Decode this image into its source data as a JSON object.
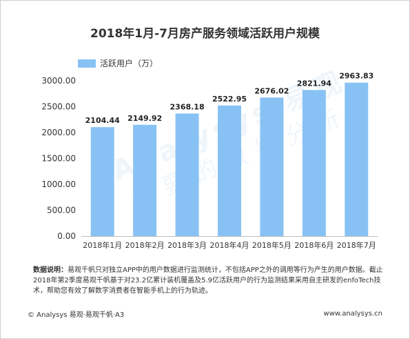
{
  "header": {
    "title": "2018年1月-7月房产服务领域活跃用户规模"
  },
  "legend": {
    "label": "活跃用户（万）",
    "color": "#88c2f4"
  },
  "chart_data": {
    "type": "bar",
    "categories": [
      "2018年1月",
      "2018年2月",
      "2018年3月",
      "2018年4月",
      "2018年5月",
      "2018年6月",
      "2018年7月"
    ],
    "series": [
      {
        "name": "活跃用户（万）",
        "values": [
          2104.44,
          2149.92,
          2368.18,
          2522.95,
          2676.02,
          2821.94,
          2963.83
        ]
      }
    ],
    "value_labels": [
      "2104.44",
      "2149.92",
      "2368.18",
      "2522.95",
      "2676.02",
      "2821.94",
      "2963.83"
    ],
    "ylim": [
      0,
      3000
    ],
    "yticks": [
      "0.00",
      "500.00",
      "1000.00",
      "1500.00",
      "2000.00",
      "2500.00",
      "3000.00"
    ],
    "grid": false,
    "legend_position": "top-left",
    "bar_color": "#88c2f4"
  },
  "notes": {
    "label": "数据说明：",
    "text": "易观千帆只对独立APP中的用户数据进行监测统计，不包括APP之外的调用等行为产生的用户数据。截止2018年第2季度易观千帆基于对23.2亿累计装机覆盖及5.9亿活跃用户的行为监测结果采用自主研发的enfoTech技术，帮助您有效了解数字消费者在智能手机上的行为轨迹。"
  },
  "footer": {
    "left": "© Analysys 易观·易观千帆·A3",
    "right": "www.analysys.cn"
  },
  "watermark": {
    "line1": "Analysys 易观",
    "line2": "你要的数据分析"
  }
}
